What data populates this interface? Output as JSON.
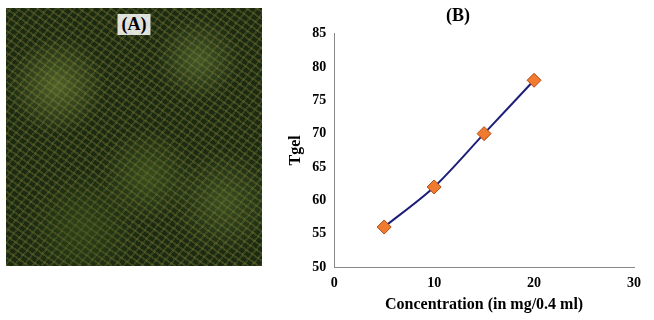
{
  "image_panel": {
    "label": "(A)"
  },
  "chart_data": {
    "type": "line",
    "title": "(B)",
    "x_label": "Concentration (in mg/0.4 ml)",
    "y_label": "Tgel",
    "x": [
      5,
      10,
      15,
      20
    ],
    "values": [
      56,
      62,
      70,
      78
    ],
    "color": "#1f1f7a",
    "marker": "diamond",
    "marker_color": "#f07a30",
    "xlim": [
      0,
      30
    ],
    "xticks": [
      0,
      10,
      20,
      30
    ],
    "ylim": [
      50,
      85
    ],
    "yticks": [
      50,
      55,
      60,
      65,
      70,
      75,
      80,
      85
    ],
    "grid": false
  }
}
